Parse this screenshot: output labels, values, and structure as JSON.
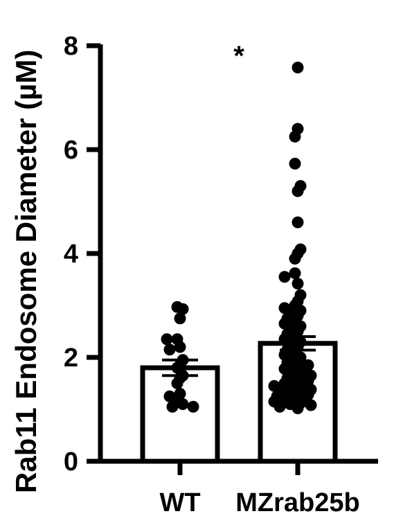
{
  "chart_data": {
    "type": "bar",
    "title": "",
    "xlabel": "",
    "ylabel": "Rab11 Endosome Diameter (µM)",
    "ylim": [
      0,
      8
    ],
    "yticks": [
      "0",
      "2",
      "4",
      "6",
      "8"
    ],
    "categories": [
      "WT",
      "MZrab25b"
    ],
    "values": [
      1.8,
      2.27
    ],
    "error": [
      0.15,
      0.13
    ],
    "annotation": "*",
    "bar_fill": "#ffffff",
    "stroke_color": "#000000",
    "point_color": "#000000",
    "points": [
      [
        2.93,
        2.75,
        2.97,
        2.35,
        2.2,
        2.35,
        2.15,
        1.95,
        1.85,
        1.8,
        1.65,
        1.6,
        1.5,
        1.3,
        1.25,
        1.2,
        1.1,
        1.05,
        1.05
      ],
      [
        7.58,
        6.4,
        6.25,
        5.73,
        5.3,
        5.2,
        4.6,
        4.08,
        4.0,
        3.9,
        3.62,
        3.55,
        3.42,
        3.2,
        3.08,
        3.0,
        2.95,
        2.9,
        2.85,
        2.8,
        2.75,
        2.7,
        2.65,
        2.6,
        2.55,
        2.5,
        2.45,
        2.4,
        2.35,
        2.3,
        2.25,
        2.2,
        2.15,
        2.1,
        2.05,
        2.0,
        1.95,
        1.92,
        1.9,
        1.85,
        1.8,
        1.78,
        1.75,
        1.7,
        1.68,
        1.65,
        1.62,
        1.6,
        1.55,
        1.52,
        1.5,
        1.48,
        1.45,
        1.42,
        1.4,
        1.38,
        1.35,
        1.32,
        1.3,
        1.28,
        1.25,
        1.22,
        1.2,
        1.18,
        1.15,
        1.12,
        1.1,
        1.08,
        1.05,
        1.02
      ]
    ]
  }
}
